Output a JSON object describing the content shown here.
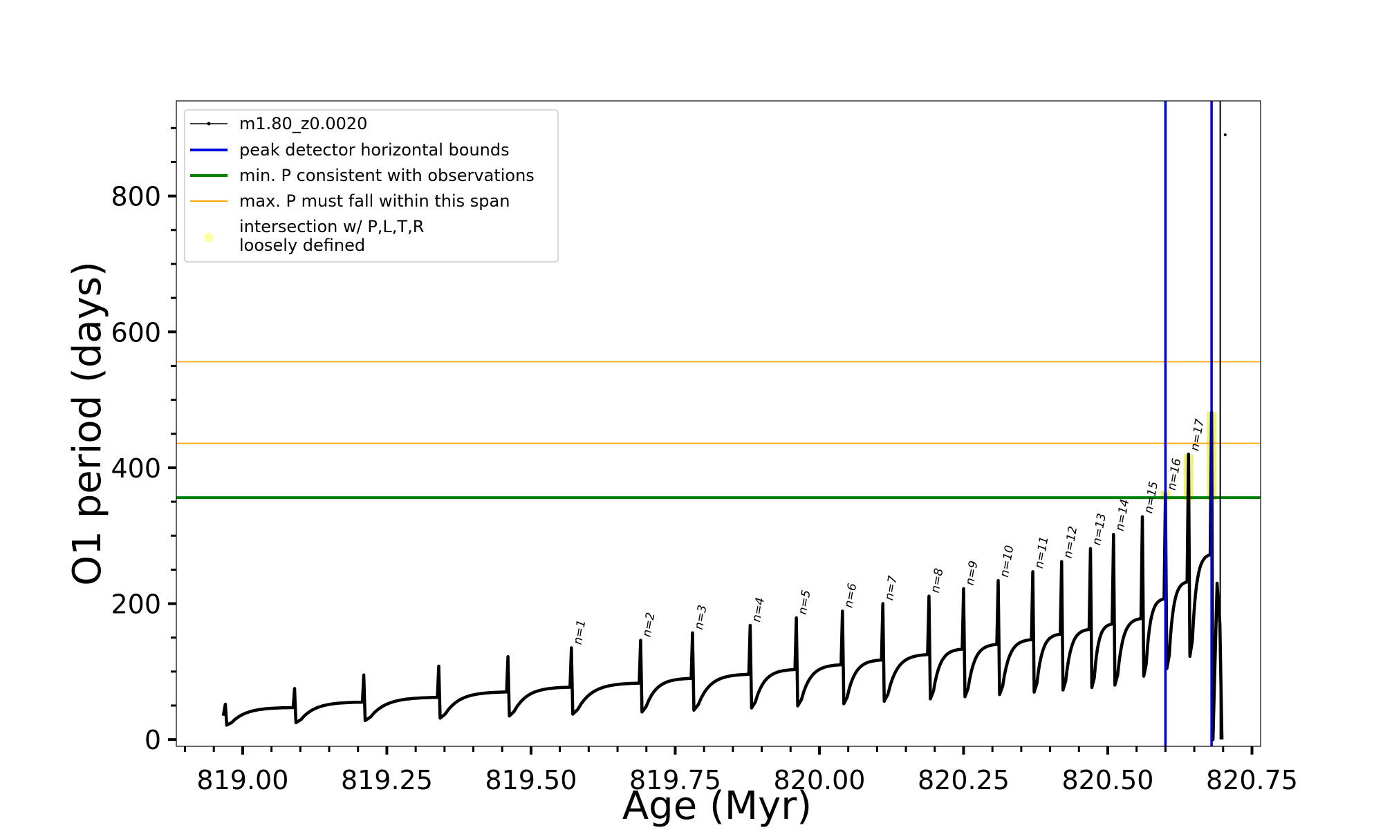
{
  "chart_data": {
    "type": "line",
    "title": "",
    "xlabel": "Age (Myr)",
    "ylabel": "O1 period (days)",
    "xlim": [
      818.885,
      820.765
    ],
    "ylim": [
      -10,
      940
    ],
    "xticks": [
      819.0,
      819.25,
      819.5,
      819.75,
      820.0,
      820.25,
      820.5,
      820.75
    ],
    "xtick_labels": [
      "819.00",
      "819.25",
      "819.50",
      "819.75",
      "820.00",
      "820.25",
      "820.50",
      "820.75"
    ],
    "yticks": [
      0,
      200,
      400,
      600,
      800
    ],
    "ytick_labels": [
      "0",
      "200",
      "400",
      "600",
      "800"
    ],
    "grid": false,
    "legend_position": "top-left",
    "series": [
      {
        "name": "m1.80_z0.0020",
        "color": "#000000",
        "pulses": [
          {
            "x": 818.97,
            "peak": 52,
            "end": 47
          },
          {
            "x": 819.09,
            "peak": 75,
            "end": 55
          },
          {
            "x": 819.21,
            "peak": 95,
            "end": 62
          },
          {
            "x": 819.34,
            "peak": 108,
            "end": 70
          },
          {
            "x": 819.46,
            "peak": 122,
            "end": 77
          },
          {
            "x": 819.57,
            "peak": 135,
            "end": 83
          },
          {
            "x": 819.69,
            "peak": 146,
            "end": 90
          },
          {
            "x": 819.78,
            "peak": 157,
            "end": 96
          },
          {
            "x": 819.88,
            "peak": 168,
            "end": 103
          },
          {
            "x": 819.96,
            "peak": 179,
            "end": 110
          },
          {
            "x": 820.04,
            "peak": 189,
            "end": 117
          },
          {
            "x": 820.11,
            "peak": 200,
            "end": 125
          },
          {
            "x": 820.19,
            "peak": 211,
            "end": 133
          },
          {
            "x": 820.25,
            "peak": 222,
            "end": 140
          },
          {
            "x": 820.31,
            "peak": 234,
            "end": 147
          },
          {
            "x": 820.37,
            "peak": 247,
            "end": 155
          },
          {
            "x": 820.42,
            "peak": 262,
            "end": 162
          },
          {
            "x": 820.47,
            "peak": 281,
            "end": 170
          },
          {
            "x": 820.51,
            "peak": 302,
            "end": 178
          },
          {
            "x": 820.56,
            "peak": 328,
            "end": 207
          },
          {
            "x": 820.6,
            "peak": 362,
            "end": 232
          },
          {
            "x": 820.64,
            "peak": 420,
            "end": 272
          },
          {
            "x": 820.68,
            "peak": 482,
            "end": 0
          }
        ]
      }
    ],
    "hlines": [
      {
        "name": "min. P consistent with observations",
        "y": 356,
        "color": "#008000"
      },
      {
        "name": "max. P must fall within this span",
        "y": 556,
        "color": "#ffa500"
      },
      {
        "name": "max. P must fall within this span",
        "y": 436,
        "color": "#ffa500"
      }
    ],
    "vlines": [
      {
        "name": "peak detector horizontal bounds",
        "x": 820.6,
        "color": "#0000dd"
      },
      {
        "name": "peak detector horizontal bounds",
        "x": 820.68,
        "color": "#0000dd"
      }
    ],
    "highlights": [
      {
        "x": 820.6,
        "y_low": 352,
        "y_high": 366
      },
      {
        "x": 820.64,
        "y_low": 352,
        "y_high": 420
      },
      {
        "x": 820.68,
        "y_low": 352,
        "y_high": 482
      }
    ],
    "pulse_labels": [
      {
        "text": "n=1",
        "x": 819.57,
        "y": 135
      },
      {
        "text": "n=2",
        "x": 819.69,
        "y": 146
      },
      {
        "text": "n=3",
        "x": 819.78,
        "y": 157
      },
      {
        "text": "n=4",
        "x": 819.88,
        "y": 168
      },
      {
        "text": "n=5",
        "x": 819.96,
        "y": 179
      },
      {
        "text": "n=6",
        "x": 820.04,
        "y": 189
      },
      {
        "text": "n=7",
        "x": 820.11,
        "y": 200
      },
      {
        "text": "n=8",
        "x": 820.19,
        "y": 211
      },
      {
        "text": "n=9",
        "x": 820.25,
        "y": 222
      },
      {
        "text": "n=10",
        "x": 820.31,
        "y": 234
      },
      {
        "text": "n=11",
        "x": 820.37,
        "y": 247
      },
      {
        "text": "n=12",
        "x": 820.42,
        "y": 262
      },
      {
        "text": "n=13",
        "x": 820.47,
        "y": 281
      },
      {
        "text": "n=14",
        "x": 820.51,
        "y": 302
      },
      {
        "text": "n=15",
        "x": 820.56,
        "y": 328
      },
      {
        "text": "n=16",
        "x": 820.6,
        "y": 362
      },
      {
        "text": "n=17",
        "x": 820.64,
        "y": 420
      }
    ],
    "legend": [
      {
        "label": "m1.80_z0.0020",
        "kind": "line-marker",
        "color": "#000000"
      },
      {
        "label": "peak detector horizontal bounds",
        "kind": "line",
        "color": "#0000dd"
      },
      {
        "label": "min. P consistent with observations",
        "kind": "line",
        "color": "#008000"
      },
      {
        "label": "max. P must fall within this span",
        "kind": "thin-line",
        "color": "#ffa500"
      },
      {
        "label": "intersection w/ P,L,T,R",
        "label2": "loosely defined",
        "kind": "dot",
        "color": "#ffff99"
      }
    ]
  }
}
